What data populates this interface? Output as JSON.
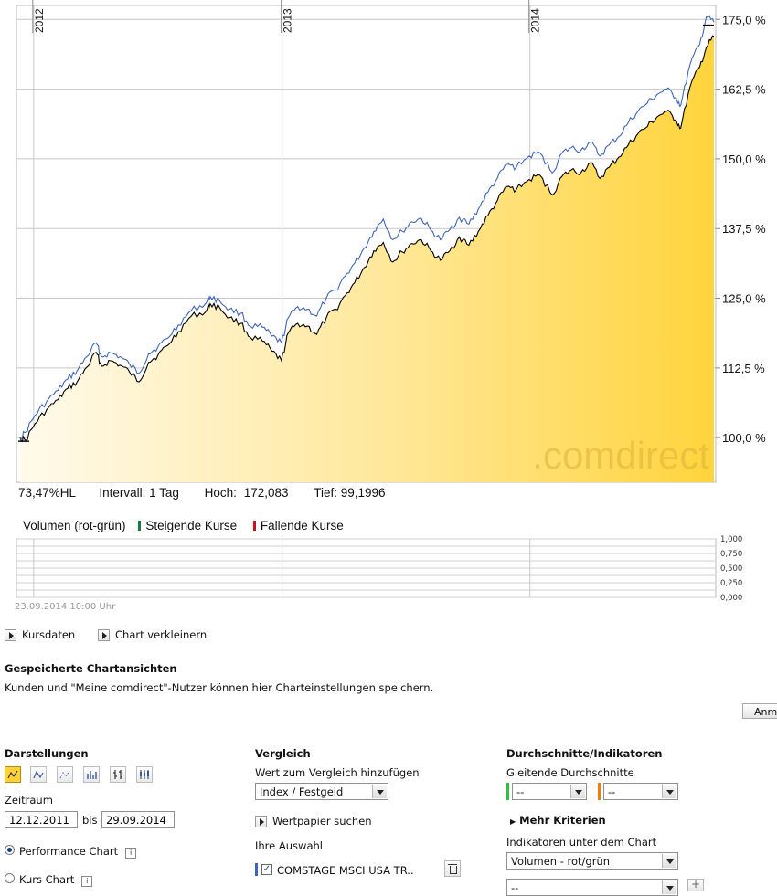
{
  "chart_data": {
    "type": "line",
    "x_years": [
      "2012",
      "2013",
      "2014"
    ],
    "y_ticks": [
      "100,0 %",
      "112,5 %",
      "125,0 %",
      "137,5 %",
      "150,0 %",
      "162,5 %",
      "175,0 %"
    ],
    "ylim": [
      92,
      177.5
    ],
    "xlim": [
      "2011-12-12",
      "2014-09-29"
    ],
    "watermark": ".comdirect",
    "series": [
      {
        "color": "#000000",
        "fill": "yellow-gradient",
        "points": [
          [
            "2011-12-12",
            100.0
          ],
          [
            "2011-12-20",
            99.5
          ],
          [
            "2012-01-03",
            102.5
          ],
          [
            "2012-01-20",
            105.0
          ],
          [
            "2012-02-06",
            106.8
          ],
          [
            "2012-02-20",
            108.8
          ],
          [
            "2012-03-05",
            110.0
          ],
          [
            "2012-03-19",
            112.6
          ],
          [
            "2012-04-02",
            115.3
          ],
          [
            "2012-04-10",
            112.8
          ],
          [
            "2012-04-23",
            113.8
          ],
          [
            "2012-05-07",
            113.0
          ],
          [
            "2012-05-21",
            111.8
          ],
          [
            "2012-06-04",
            110.0
          ],
          [
            "2012-06-18",
            113.5
          ],
          [
            "2012-07-02",
            114.8
          ],
          [
            "2012-07-16",
            116.5
          ],
          [
            "2012-08-01",
            119.0
          ],
          [
            "2012-08-20",
            121.8
          ],
          [
            "2012-09-10",
            122.5
          ],
          [
            "2012-09-17",
            124.0
          ],
          [
            "2012-10-01",
            123.3
          ],
          [
            "2012-10-15",
            121.5
          ],
          [
            "2012-11-01",
            120.5
          ],
          [
            "2012-11-15",
            118.0
          ],
          [
            "2012-12-03",
            117.3
          ],
          [
            "2012-12-17",
            115.5
          ],
          [
            "2012-12-31",
            113.8
          ],
          [
            "2013-01-10",
            118.8
          ],
          [
            "2013-01-24",
            120.5
          ],
          [
            "2013-02-07",
            120.0
          ],
          [
            "2013-02-21",
            118.5
          ],
          [
            "2013-03-07",
            121.5
          ],
          [
            "2013-03-21",
            123.0
          ],
          [
            "2013-04-04",
            125.5
          ],
          [
            "2013-04-18",
            127.8
          ],
          [
            "2013-05-02",
            130.5
          ],
          [
            "2013-05-16",
            133.5
          ],
          [
            "2013-05-30",
            135.0
          ],
          [
            "2013-06-13",
            131.5
          ],
          [
            "2013-06-27",
            133.3
          ],
          [
            "2013-07-11",
            134.8
          ],
          [
            "2013-07-25",
            135.5
          ],
          [
            "2013-08-08",
            133.5
          ],
          [
            "2013-08-22",
            131.8
          ],
          [
            "2013-09-05",
            133.5
          ],
          [
            "2013-09-19",
            136.0
          ],
          [
            "2013-10-03",
            134.5
          ],
          [
            "2013-10-17",
            137.0
          ],
          [
            "2013-10-31",
            139.8
          ],
          [
            "2013-11-14",
            142.5
          ],
          [
            "2013-11-28",
            145.0
          ],
          [
            "2013-12-12",
            144.5
          ],
          [
            "2013-12-31",
            146.3
          ],
          [
            "2014-01-16",
            147.0
          ],
          [
            "2014-02-03",
            143.5
          ],
          [
            "2014-02-17",
            146.8
          ],
          [
            "2014-03-03",
            148.0
          ],
          [
            "2014-03-17",
            147.5
          ],
          [
            "2014-03-31",
            149.3
          ],
          [
            "2014-04-14",
            146.5
          ],
          [
            "2014-04-28",
            148.5
          ],
          [
            "2014-05-12",
            150.3
          ],
          [
            "2014-05-26",
            152.5
          ],
          [
            "2014-06-09",
            154.5
          ],
          [
            "2014-06-23",
            155.8
          ],
          [
            "2014-07-07",
            157.5
          ],
          [
            "2014-07-21",
            158.5
          ],
          [
            "2014-08-04",
            157.0
          ],
          [
            "2014-08-11",
            155.5
          ],
          [
            "2014-08-25",
            163.0
          ],
          [
            "2014-09-08",
            166.5
          ],
          [
            "2014-09-18",
            170.0
          ],
          [
            "2014-09-29",
            172.0
          ]
        ]
      },
      {
        "color": "#3f66b8",
        "points": [
          [
            "2011-12-12",
            100.0
          ],
          [
            "2011-12-20",
            101.0
          ],
          [
            "2012-01-03",
            104.0
          ],
          [
            "2012-01-20",
            106.5
          ],
          [
            "2012-02-06",
            108.5
          ],
          [
            "2012-02-20",
            110.5
          ],
          [
            "2012-03-05",
            112.0
          ],
          [
            "2012-03-19",
            114.5
          ],
          [
            "2012-04-02",
            117.0
          ],
          [
            "2012-04-10",
            114.5
          ],
          [
            "2012-04-23",
            115.2
          ],
          [
            "2012-05-07",
            114.5
          ],
          [
            "2012-05-21",
            113.2
          ],
          [
            "2012-06-04",
            111.5
          ],
          [
            "2012-06-18",
            115.0
          ],
          [
            "2012-07-02",
            116.3
          ],
          [
            "2012-07-16",
            117.8
          ],
          [
            "2012-08-01",
            120.2
          ],
          [
            "2012-08-20",
            122.8
          ],
          [
            "2012-09-10",
            124.0
          ],
          [
            "2012-09-17",
            125.3
          ],
          [
            "2012-10-01",
            124.5
          ],
          [
            "2012-10-15",
            123.0
          ],
          [
            "2012-11-01",
            122.3
          ],
          [
            "2012-11-15",
            120.0
          ],
          [
            "2012-12-03",
            119.8
          ],
          [
            "2012-12-17",
            118.2
          ],
          [
            "2012-12-31",
            117.0
          ],
          [
            "2013-01-10",
            121.5
          ],
          [
            "2013-01-24",
            123.5
          ],
          [
            "2013-02-07",
            123.0
          ],
          [
            "2013-02-21",
            121.8
          ],
          [
            "2013-03-07",
            125.0
          ],
          [
            "2013-03-21",
            126.5
          ],
          [
            "2013-04-04",
            129.0
          ],
          [
            "2013-04-18",
            131.3
          ],
          [
            "2013-05-02",
            134.0
          ],
          [
            "2013-05-16",
            137.0
          ],
          [
            "2013-05-30",
            139.2
          ],
          [
            "2013-06-13",
            135.5
          ],
          [
            "2013-06-27",
            137.0
          ],
          [
            "2013-07-11",
            138.7
          ],
          [
            "2013-07-25",
            139.3
          ],
          [
            "2013-08-08",
            137.2
          ],
          [
            "2013-08-22",
            135.5
          ],
          [
            "2013-09-05",
            137.3
          ],
          [
            "2013-09-19",
            139.5
          ],
          [
            "2013-10-03",
            138.3
          ],
          [
            "2013-10-17",
            141.0
          ],
          [
            "2013-10-31",
            144.0
          ],
          [
            "2013-11-14",
            146.5
          ],
          [
            "2013-11-28",
            149.0
          ],
          [
            "2013-12-12",
            148.5
          ],
          [
            "2013-12-31",
            150.5
          ],
          [
            "2014-01-16",
            151.0
          ],
          [
            "2014-02-03",
            147.5
          ],
          [
            "2014-02-17",
            151.0
          ],
          [
            "2014-03-03",
            152.0
          ],
          [
            "2014-03-17",
            151.5
          ],
          [
            "2014-03-31",
            153.0
          ],
          [
            "2014-04-14",
            150.5
          ],
          [
            "2014-04-28",
            152.5
          ],
          [
            "2014-05-12",
            154.0
          ],
          [
            "2014-05-26",
            156.5
          ],
          [
            "2014-06-09",
            158.5
          ],
          [
            "2014-06-23",
            160.0
          ],
          [
            "2014-07-07",
            161.5
          ],
          [
            "2014-07-21",
            162.5
          ],
          [
            "2014-08-04",
            161.0
          ],
          [
            "2014-08-11",
            159.5
          ],
          [
            "2014-08-25",
            167.0
          ],
          [
            "2014-09-08",
            170.5
          ],
          [
            "2014-09-18",
            175.5
          ],
          [
            "2014-09-29",
            174.5
          ]
        ]
      }
    ],
    "volume": {
      "y_ticks": [
        "1,000",
        "0,750",
        "0,500",
        "0,250",
        "0,000"
      ],
      "ylim": [
        0,
        1
      ],
      "legend_title": "Volumen (rot-grün)",
      "legend_up": "Steigende Kurse",
      "legend_down": "Fallende Kurse",
      "up_color": "#1c7a3c",
      "down_color": "#c0161b"
    }
  },
  "stats": {
    "performance": "73,47%HL",
    "interval": "Intervall: 1 Tag",
    "high_label": "Hoch:",
    "high_value": "172,083",
    "low": "Tief: 99,1996"
  },
  "timestamp": "23.09.2014 10:00 Uhr",
  "links": {
    "kursdaten": "Kursdaten",
    "chart_verkleinern": "Chart verkleinern"
  },
  "saved": {
    "title": "Gespeicherte Chartansichten",
    "description": "Kunden und \"Meine comdirect\"-Nutzer können hier Charteinstellungen speichern.",
    "button": "Anm"
  },
  "darstellungen": {
    "title": "Darstellungen",
    "zeitraum_label": "Zeitraum",
    "from": "12.12.2011",
    "bis": "bis",
    "to": "29.09.2014",
    "performance_chart": "Performance Chart",
    "kurs_chart": "Kurs Chart",
    "info": "i"
  },
  "vergleich": {
    "title": "Vergleich",
    "add_label": "Wert zum Vergleich hinzufügen",
    "select_value": "Index / Festgeld",
    "search": "Wertpapier suchen",
    "auswahl_label": "Ihre Auswahl",
    "selection_item": "COMSTAGE MSCI USA TR..",
    "selection_color": "#3f66b8"
  },
  "indikatoren": {
    "title": "Durchschnitte/Indikatoren",
    "gleitende_label": "Gleitende Durchschnitte",
    "ma1": "--",
    "ma1_color": "#2ec13a",
    "ma2": "--",
    "ma2_color": "#ef7d00",
    "mehr": "Mehr Kriterien",
    "unter_label": "Indikatoren unter dem Chart",
    "select1": "Volumen - rot/grün",
    "select2": "--"
  }
}
